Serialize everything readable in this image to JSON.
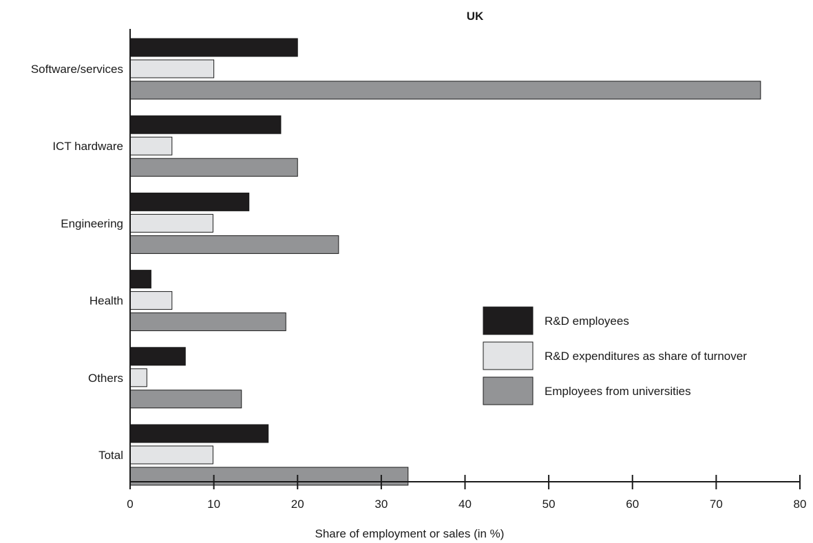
{
  "chart_data": {
    "type": "bar",
    "orientation": "horizontal",
    "title": "UK",
    "xlabel": "Share of employment or sales (in %)",
    "ylabel": "",
    "xlim": [
      0,
      80
    ],
    "xticks": [
      0,
      10,
      20,
      30,
      40,
      50,
      60,
      70,
      80
    ],
    "grid": false,
    "legend_position": "center-right",
    "categories": [
      "Software/services",
      "ICT hardware",
      "Engineering",
      "Health",
      "Others",
      "Total"
    ],
    "series": [
      {
        "name": "R&D employees",
        "color": "#1e1c1d",
        "values": [
          20,
          18,
          14.2,
          2.5,
          6.6,
          16.5
        ]
      },
      {
        "name": "R&D expenditures as share of turnover",
        "color": "#e3e4e6",
        "values": [
          10,
          5,
          9.9,
          5,
          2,
          9.9
        ]
      },
      {
        "name": "Employees from universities",
        "color": "#939496",
        "values": [
          75.3,
          20,
          24.9,
          18.6,
          13.3,
          33.2
        ]
      }
    ]
  }
}
